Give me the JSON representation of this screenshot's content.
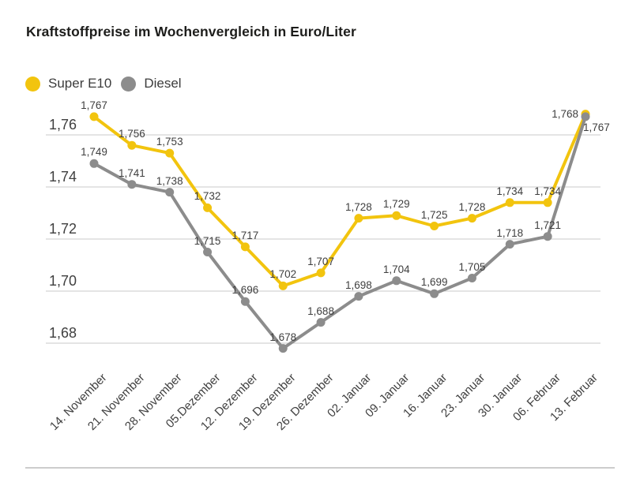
{
  "page": {
    "title": "Kraftstoffpreise im Wochenvergleich in Euro/Liter"
  },
  "colors": {
    "super_e10": "#F2C40E",
    "diesel": "#8C8C8C",
    "gridline": "#c8c8c8",
    "label_text": "#3f3f3f",
    "separator": "#cccccc"
  },
  "chart_data": {
    "type": "line",
    "title": "Kraftstoffpreise im Wochenvergleich in Euro/Liter",
    "unit": "Euro/Liter",
    "grid": true,
    "legend_position": "top-left",
    "categories": [
      "14. November",
      "21. November",
      "28. November",
      "05.Dezember",
      "12. Dezember",
      "19. Dezember",
      "26. Dezember",
      "02. Januar",
      "09. Januar",
      "16. Januar",
      "23. Januar",
      "30. Januar",
      "06. Februar",
      "13. Februar"
    ],
    "series": [
      {
        "name": "Super E10",
        "color": "#F2C40E",
        "values": [
          1.767,
          1.756,
          1.753,
          1.732,
          1.717,
          1.702,
          1.707,
          1.728,
          1.729,
          1.725,
          1.728,
          1.734,
          1.734,
          1.768
        ],
        "labels": [
          "1,767",
          "1,756",
          "1,753",
          "1,732",
          "1,717",
          "1,702",
          "1,707",
          "1,728",
          "1,729",
          "1,725",
          "1,728",
          "1,734",
          "1,734",
          "1,768"
        ],
        "last_label_placement": "left"
      },
      {
        "name": "Diesel",
        "color": "#8C8C8C",
        "values": [
          1.749,
          1.741,
          1.738,
          1.715,
          1.696,
          1.678,
          1.688,
          1.698,
          1.704,
          1.699,
          1.705,
          1.718,
          1.721,
          1.767
        ],
        "labels": [
          "1,749",
          "1,741",
          "1,738",
          "1,715",
          "1,696",
          "1,678",
          "1,688",
          "1,698",
          "1,704",
          "1,699",
          "1,705",
          "1,718",
          "1,721",
          "1,767"
        ],
        "last_label_placement": "below-right"
      }
    ],
    "y_axis": {
      "ticks": [
        {
          "value": 1.76,
          "label": "1,76"
        },
        {
          "value": 1.74,
          "label": "1,74"
        },
        {
          "value": 1.72,
          "label": "1,72"
        },
        {
          "value": 1.7,
          "label": "1,70"
        },
        {
          "value": 1.68,
          "label": "1,68"
        }
      ],
      "range_shown": [
        1.68,
        1.76
      ]
    }
  }
}
